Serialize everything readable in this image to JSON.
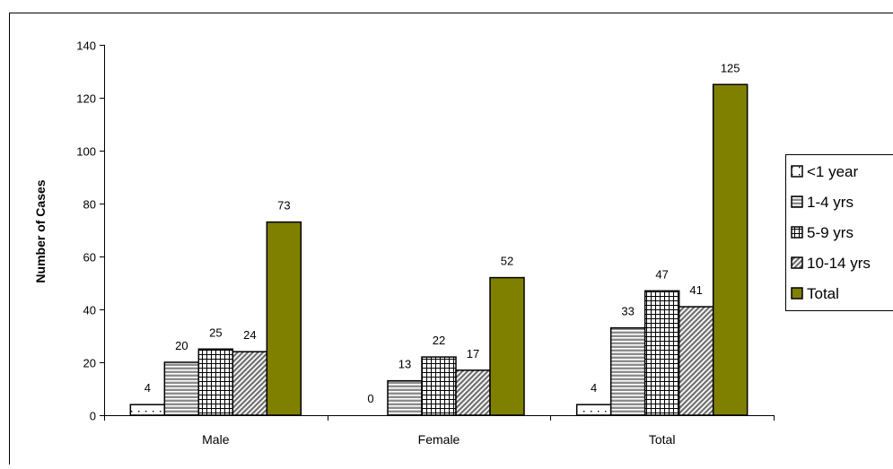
{
  "chart_data": {
    "type": "bar",
    "title": "",
    "xlabel": "",
    "ylabel": "Number of Cases",
    "categories": [
      "Male",
      "Female",
      "Total"
    ],
    "ylim": [
      0,
      140
    ],
    "yticks": [
      0,
      20,
      40,
      60,
      80,
      100,
      120,
      140
    ],
    "grid": false,
    "legend_position": "right",
    "series": [
      {
        "name": "<1 year",
        "values": [
          4,
          0,
          4
        ],
        "pattern": "dots",
        "color": "#ffffff"
      },
      {
        "name": "1-4 yrs",
        "values": [
          20,
          13,
          33
        ],
        "pattern": "horizontal-lines",
        "color": "#808080"
      },
      {
        "name": "5-9 yrs",
        "values": [
          25,
          22,
          47
        ],
        "pattern": "grid",
        "color": "#ffffff"
      },
      {
        "name": "10-14 yrs",
        "values": [
          24,
          17,
          41
        ],
        "pattern": "diagonal",
        "color": "#808080"
      },
      {
        "name": "Total",
        "values": [
          73,
          52,
          125
        ],
        "pattern": "solid",
        "color": "#808000"
      }
    ]
  }
}
